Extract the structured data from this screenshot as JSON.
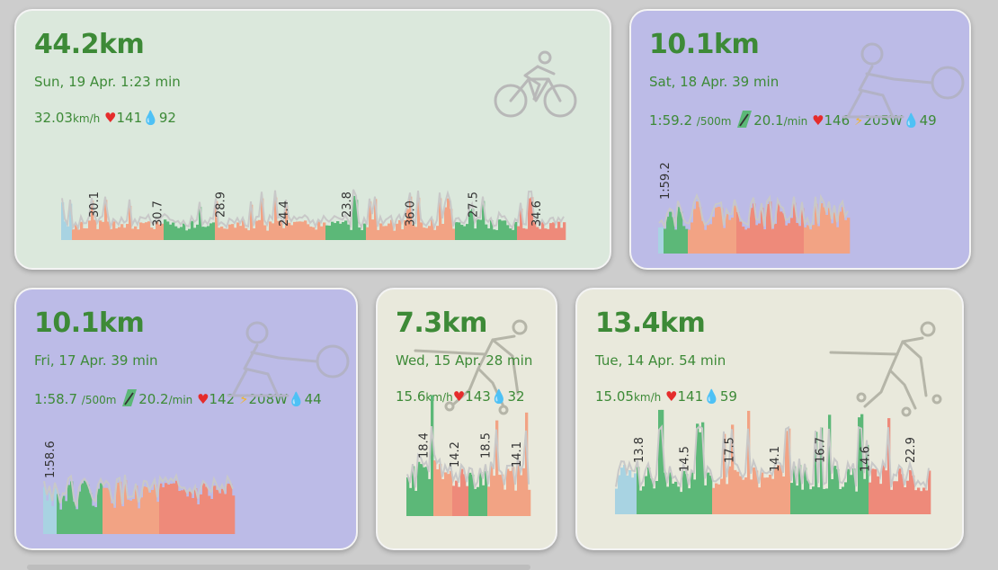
{
  "colors": {
    "green": "#5cb878",
    "salmon": "#f2a384",
    "red": "#ee8a7a",
    "lightblue": "#a8d3e2",
    "overlay": "#c8c8c8",
    "text": "#3d8a37"
  },
  "cards": [
    {
      "distance": "44.2km",
      "date": "Sun, 19 Apr. 1:23 min",
      "speed": "32.03",
      "speed_unit": "km/h",
      "heart_rate": "141",
      "drop_value": "92",
      "activity_icon": "cycling-icon",
      "chart_labels": [
        "30.1",
        "30.7",
        "28.9",
        "24.4",
        "23.8",
        "36.0",
        "27.5",
        "34.6"
      ]
    },
    {
      "distance": "10.1km",
      "date": "Sat, 18 Apr. 39 min",
      "pace": "1:59.2",
      "pace_unit": "/500m",
      "stroke_rate": "20.1",
      "stroke_rate_unit": "/min",
      "heart_rate": "146",
      "power": "205W",
      "drop_value": "49",
      "activity_icon": "rowing-icon",
      "chart_labels": [
        "1:59.2"
      ]
    },
    {
      "distance": "10.1km",
      "date": "Fri, 17 Apr. 39 min",
      "pace": "1:58.7",
      "pace_unit": "/500m",
      "stroke_rate": "20.2",
      "stroke_rate_unit": "/min",
      "heart_rate": "142",
      "power": "208W",
      "drop_value": "44",
      "activity_icon": "rowing-icon",
      "chart_labels": [
        "1:58.6"
      ]
    },
    {
      "distance": "7.3km",
      "date": "Wed, 15 Apr. 28 min",
      "speed": "15.6",
      "speed_unit": "km/h",
      "heart_rate": "143",
      "drop_value": "32",
      "activity_icon": "rollerski-icon",
      "chart_labels": [
        "18.4",
        "14.2",
        "18.5",
        "14.1"
      ]
    },
    {
      "distance": "13.4km",
      "date": "Tue, 14 Apr. 54 min",
      "speed": "15.05",
      "speed_unit": "km/h",
      "heart_rate": "141",
      "drop_value": "59",
      "activity_icon": "rollerski-icon",
      "chart_labels": [
        "13.8",
        "14.5",
        "17.5",
        "14.1",
        "16.7",
        "14.6",
        "22.9"
      ]
    }
  ]
}
